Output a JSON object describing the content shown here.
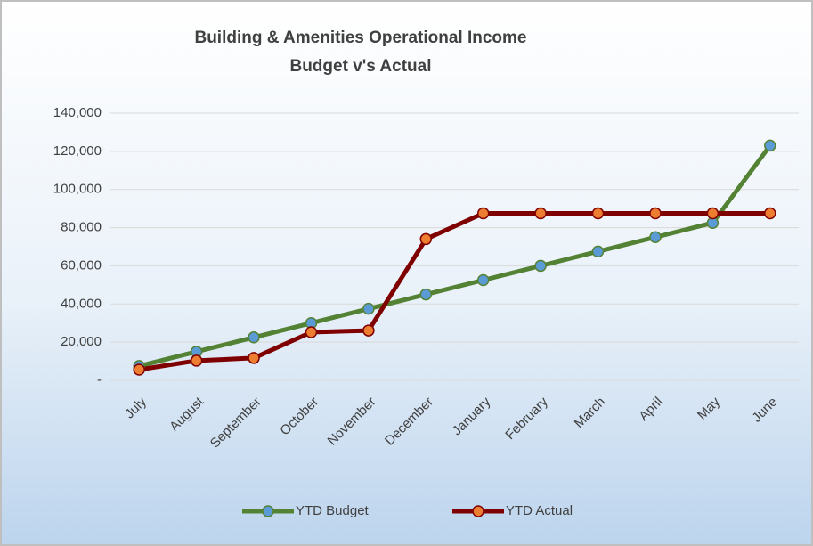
{
  "chart_data": {
    "type": "line",
    "title": "Building & Amenities Operational Income",
    "subtitle": "Budget v's Actual",
    "categories": [
      "July",
      "August",
      "September",
      "October",
      "November",
      "December",
      "January",
      "February",
      "March",
      "April",
      "May",
      "June"
    ],
    "series": [
      {
        "name": "YTD Budget",
        "color": "#548235",
        "marker_color": "#5b9bd5",
        "values": [
          7500,
          15000,
          22500,
          30000,
          37500,
          45000,
          52500,
          60000,
          67500,
          75000,
          82500,
          123000
        ]
      },
      {
        "name": "YTD Actual",
        "color": "#7f0000",
        "marker_color": "#ed7d31",
        "values": [
          5600,
          10300,
          11700,
          25200,
          26100,
          74000,
          87500,
          87500,
          87500,
          87500,
          87500,
          87500
        ]
      }
    ],
    "ylim": [
      0,
      140000
    ],
    "yticks": [
      {
        "value": 0,
        "label": "-"
      },
      {
        "value": 20000,
        "label": "20,000"
      },
      {
        "value": 40000,
        "label": "40,000"
      },
      {
        "value": 60000,
        "label": "60,000"
      },
      {
        "value": 80000,
        "label": "80,000"
      },
      {
        "value": 100000,
        "label": "100,000"
      },
      {
        "value": 120000,
        "label": "120,000"
      },
      {
        "value": 140000,
        "label": "140,000"
      }
    ],
    "grid": true,
    "legend": "bottom"
  }
}
